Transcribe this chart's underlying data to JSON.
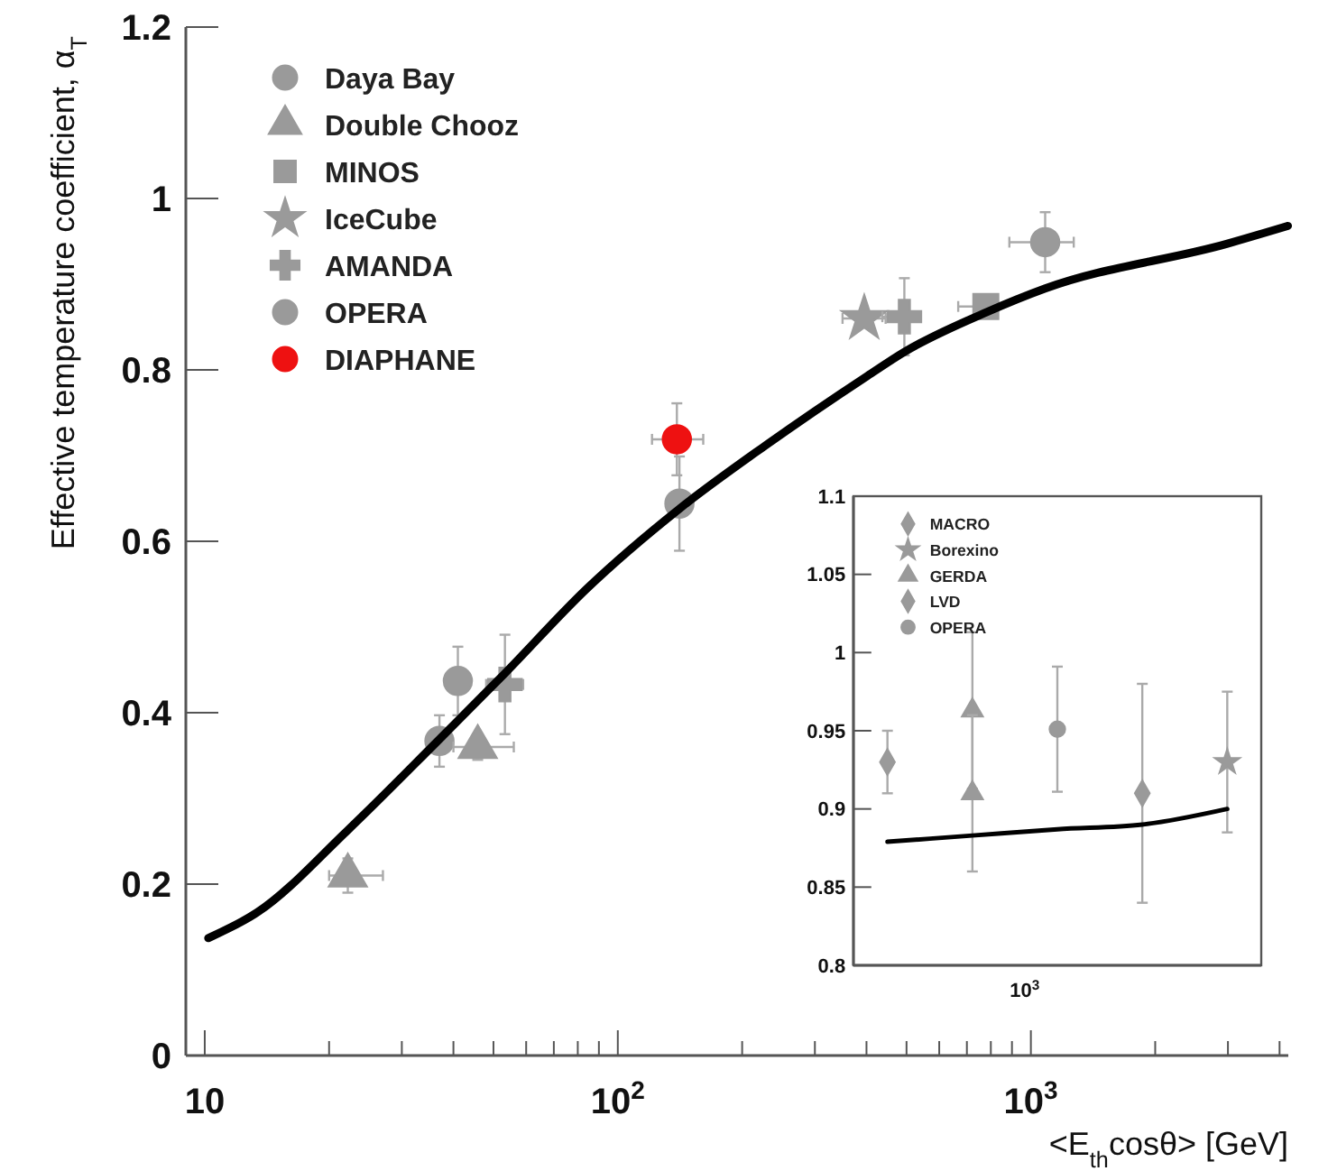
{
  "chart_data": [
    {
      "type": "scatter",
      "xlabel": "<E$_{th}$cosθ> [GeV]",
      "ylabel": "Effective temperature coefficient, α$_{T}$",
      "log": "x",
      "legend": "top left",
      "xlim": [
        9,
        4200
      ],
      "ylim": [
        0,
        1.2
      ],
      "xticks": [
        {
          "value": 10,
          "label": "10"
        },
        {
          "value": 20,
          "label": null
        },
        {
          "value": 30,
          "label": null
        },
        {
          "value": 40,
          "label": null
        },
        {
          "value": 50,
          "label": null
        },
        {
          "value": 60,
          "label": null
        },
        {
          "value": 70,
          "label": null
        },
        {
          "value": 80,
          "label": null
        },
        {
          "value": 90,
          "label": null
        },
        {
          "value": 100,
          "label": "10$^{2}$"
        },
        {
          "value": 200,
          "label": null
        },
        {
          "value": 300,
          "label": null
        },
        {
          "value": 400,
          "label": null
        },
        {
          "value": 500,
          "label": null
        },
        {
          "value": 600,
          "label": null
        },
        {
          "value": 700,
          "label": null
        },
        {
          "value": 800,
          "label": null
        },
        {
          "value": 900,
          "label": null
        },
        {
          "value": 1000,
          "label": "10$^{3}$"
        },
        {
          "value": 2000,
          "label": null
        },
        {
          "value": 3000,
          "label": null
        },
        {
          "value": 4000,
          "label": null
        }
      ],
      "yticks": [
        0,
        0.2,
        0.4,
        0.6,
        0.8,
        1,
        1.2
      ],
      "series": [
        {
          "name": "Daya Bay",
          "color": "#9a9a9a",
          "marker": "circle",
          "x": [
            37,
            41,
            141
          ],
          "values": [
            0.367,
            0.437,
            0.644
          ],
          "errors": [
            0.03,
            0.04,
            0.055
          ],
          "xerrors": [
            null,
            null,
            null
          ]
        },
        {
          "name": "Double Chooz",
          "color": "#9a9a9a",
          "marker": "triangle",
          "x": [
            22.2,
            45.8
          ],
          "values": [
            0.21,
            0.36
          ],
          "errors": [
            0.02,
            0.015
          ],
          "xerrors": [
            [
              20,
              27
            ],
            [
              40,
              56
            ]
          ]
        },
        {
          "name": "MINOS",
          "color": "#9a9a9a",
          "marker": "square",
          "x": [
            778
          ],
          "values": [
            0.874
          ],
          "errors": [
            null
          ],
          "xerrors": [
            [
              667,
              832
            ]
          ]
        },
        {
          "name": "IceCube",
          "color": "#9a9a9a",
          "marker": "star",
          "x": [
            395
          ],
          "values": [
            0.86
          ],
          "errors": [
            null
          ],
          "xerrors": [
            [
              350,
              445
            ]
          ]
        },
        {
          "name": "AMANDA",
          "color": "#9a9a9a",
          "marker": "cross",
          "x": [
            53.3,
            494
          ],
          "values": [
            0.433,
            0.862
          ],
          "errors": [
            0.058,
            0.045
          ],
          "xerrors": [
            [
              48,
              59
            ],
            [
              437,
              538
            ]
          ]
        },
        {
          "name": "OPERA",
          "color": "#9a9a9a",
          "marker": "circle",
          "x": [
            1083
          ],
          "values": [
            0.949
          ],
          "errors": [
            0.035
          ],
          "xerrors": [
            [
              887,
              1270
            ]
          ]
        },
        {
          "name": "DIAPHANE",
          "color": "#ee1111",
          "marker": "circle",
          "x": [
            139
          ],
          "values": [
            0.719
          ],
          "errors": [
            0.042
          ],
          "xerrors": [
            [
              121,
              161
            ]
          ]
        },
        {
          "type": "line",
          "color": "#000000",
          "marker": "none",
          "x": [
            10.2,
            13.4,
            22.2,
            36.3,
            53.3,
            83.8,
            141,
            228,
            402,
            494,
            778,
            1083,
            2977,
            4190
          ],
          "values": [
            0.137,
            0.167,
            0.263,
            0.365,
            0.446,
            0.544,
            0.638,
            0.712,
            0.793,
            0.821,
            0.867,
            0.895,
            0.947,
            0.968
          ]
        }
      ]
    },
    {
      "type": "scatter",
      "log": "x",
      "legend": "top left",
      "categories": [
        null,
        null,
        null,
        null,
        null
      ],
      "ylim": [
        0.8,
        1.1
      ],
      "annotations": [
        "10$^{3}$"
      ],
      "yticks": [
        0.8,
        0.85,
        0.9,
        0.95,
        1,
        1.05,
        1.1
      ],
      "series": [
        {
          "name": "MACRO",
          "color": "#9a9a9a",
          "marker": "diamond",
          "values": [
            null,
            null,
            null,
            0.91,
            null
          ],
          "errors": [
            null,
            null,
            null,
            0.07,
            null
          ]
        },
        {
          "name": "Borexino",
          "color": "#9a9a9a",
          "marker": "star",
          "values": [
            null,
            null,
            null,
            null,
            0.93
          ],
          "errors": [
            null,
            null,
            null,
            null,
            0.045
          ]
        },
        {
          "name": "GERDA",
          "color": "#9a9a9a",
          "marker": "triangle",
          "values": [
            null,
            0.963,
            null,
            null,
            null
          ],
          "errors": [
            null,
            0.05,
            null,
            null,
            null
          ]
        },
        {
          "color": "#9a9a9a",
          "marker": "triangle",
          "values": [
            null,
            0.91,
            null,
            null,
            null
          ],
          "errors": [
            null,
            0.05,
            null,
            null,
            null
          ]
        },
        {
          "name": "LVD",
          "color": "#9a9a9a",
          "marker": "diamond",
          "values": [
            0.93,
            null,
            null,
            null,
            null
          ],
          "errors": [
            0.02,
            null,
            null,
            null,
            null
          ]
        },
        {
          "name": "OPERA",
          "color": "#9a9a9a",
          "marker": "circle",
          "values": [
            null,
            null,
            0.951,
            null,
            null
          ],
          "errors": [
            null,
            null,
            0.04,
            null,
            null
          ]
        },
        {
          "type": "line",
          "color": "#000000",
          "marker": "none",
          "values": [
            0.879,
            0.883,
            0.887,
            0.89,
            0.9
          ]
        }
      ]
    }
  ]
}
